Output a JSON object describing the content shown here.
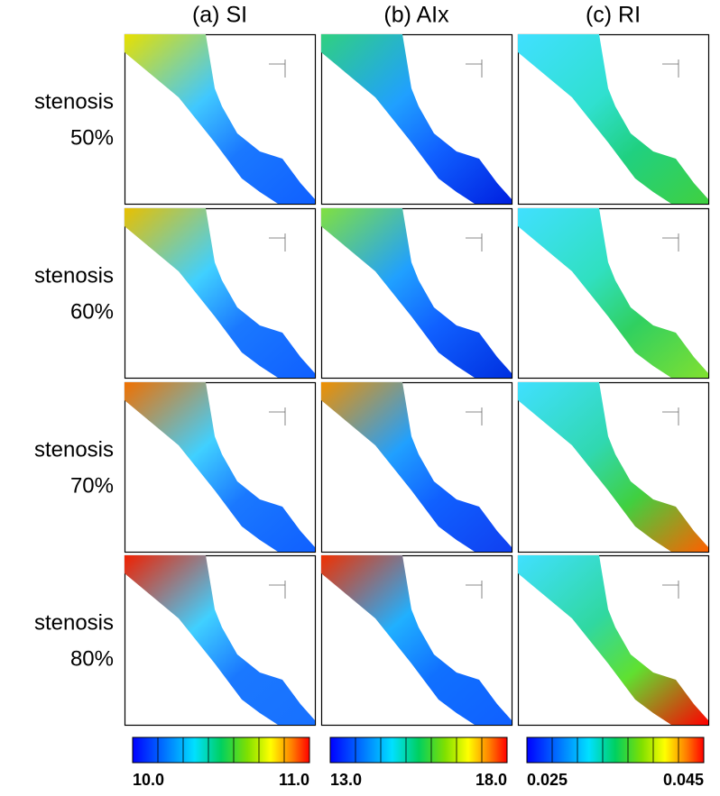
{
  "columns": [
    "(a) SI",
    "(b) AIx",
    "(c) RI"
  ],
  "rows": [
    {
      "lines": [
        "stenosis",
        "50%"
      ]
    },
    {
      "lines": [
        "stenosis",
        "60%"
      ]
    },
    {
      "lines": [
        "stenosis",
        "70%"
      ]
    },
    {
      "lines": [
        "stenosis",
        "80%"
      ]
    }
  ],
  "colorbars": [
    {
      "min": "10.0",
      "max": "11.0"
    },
    {
      "min": "13.0",
      "max": "18.0"
    },
    {
      "min": "0.025",
      "max": "0.045"
    }
  ]
}
